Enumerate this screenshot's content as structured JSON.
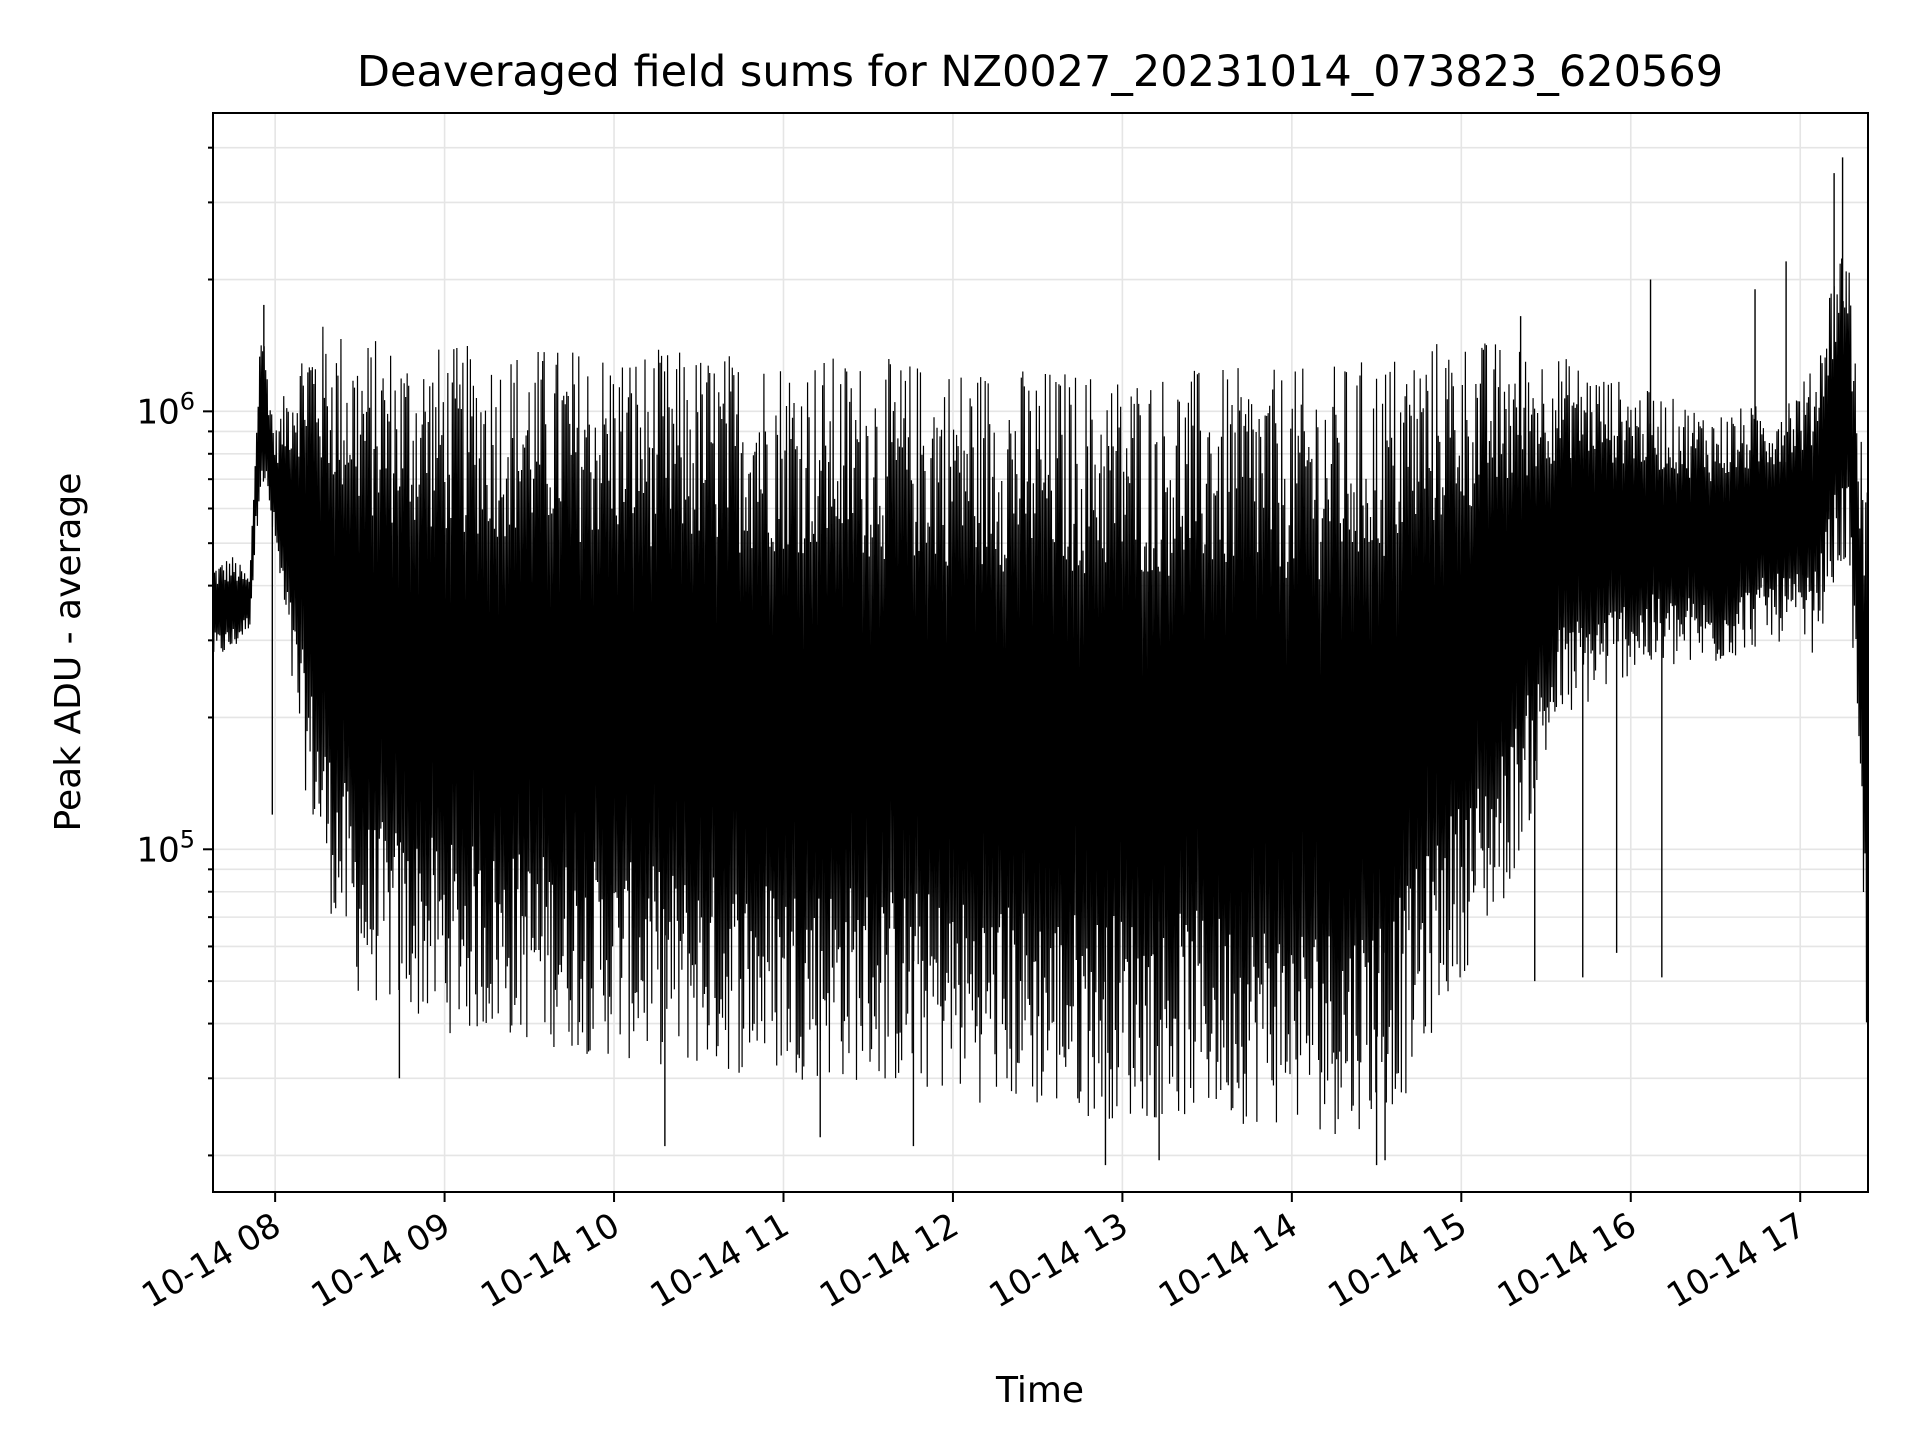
{
  "chart_data": {
    "type": "line",
    "title": "Deaveraged field sums for NZ0027_20231014_073823_620569",
    "xlabel": "Time",
    "ylabel": "Peak ADU - average",
    "yscale": "log",
    "grid": true,
    "legend": "none",
    "line_color": "#000000",
    "xlim": [
      "2023-10-14 07:38",
      "2023-10-14 17:24"
    ],
    "ylim": [
      16500,
      4800000
    ],
    "x_ticks": [
      {
        "value": "2023-10-14 08:00",
        "label": "10-14 08"
      },
      {
        "value": "2023-10-14 09:00",
        "label": "10-14 09"
      },
      {
        "value": "2023-10-14 10:00",
        "label": "10-14 10"
      },
      {
        "value": "2023-10-14 11:00",
        "label": "10-14 11"
      },
      {
        "value": "2023-10-14 12:00",
        "label": "10-14 12"
      },
      {
        "value": "2023-10-14 13:00",
        "label": "10-14 13"
      },
      {
        "value": "2023-10-14 14:00",
        "label": "10-14 14"
      },
      {
        "value": "2023-10-14 15:00",
        "label": "10-14 15"
      },
      {
        "value": "2023-10-14 16:00",
        "label": "10-14 16"
      },
      {
        "value": "2023-10-14 17:00",
        "label": "10-14 17"
      }
    ],
    "y_ticks": [
      {
        "value": 100000,
        "base": "10",
        "exp": "5"
      },
      {
        "value": 1000000,
        "base": "10",
        "exp": "6"
      }
    ],
    "envelope": {
      "columns": [
        "time",
        "lower",
        "upper"
      ],
      "note": "approximate per-interval min/max of the dense trace",
      "rows": [
        [
          "2023-10-14 07:38",
          270000,
          450000
        ],
        [
          "2023-10-14 07:45",
          280000,
          470000
        ],
        [
          "2023-10-14 07:51",
          320000,
          420000
        ],
        [
          "2023-10-14 07:55",
          700000,
          1700000
        ],
        [
          "2023-10-14 08:00",
          480000,
          900000
        ],
        [
          "2023-10-14 08:06",
          220000,
          1300000
        ],
        [
          "2023-10-14 08:12",
          120000,
          1600000
        ],
        [
          "2023-10-14 08:20",
          70000,
          1600000
        ],
        [
          "2023-10-14 08:30",
          45000,
          1500000
        ],
        [
          "2023-10-14 08:45",
          42000,
          1450000
        ],
        [
          "2023-10-14 09:00",
          38000,
          1420000
        ],
        [
          "2023-10-14 09:30",
          36000,
          1420000
        ],
        [
          "2023-10-14 10:00",
          33000,
          1420000
        ],
        [
          "2023-10-14 10:30",
          31000,
          1380000
        ],
        [
          "2023-10-14 11:00",
          30000,
          1380000
        ],
        [
          "2023-10-14 11:30",
          29000,
          1330000
        ],
        [
          "2023-10-14 12:00",
          27000,
          1300000
        ],
        [
          "2023-10-14 12:30",
          25000,
          1270000
        ],
        [
          "2023-10-14 13:00",
          24000,
          1250000
        ],
        [
          "2023-10-14 13:30",
          24000,
          1260000
        ],
        [
          "2023-10-14 14:00",
          23000,
          1250000
        ],
        [
          "2023-10-14 14:20",
          22000,
          1300000
        ],
        [
          "2023-10-14 14:40",
          27000,
          1400000
        ],
        [
          "2023-10-14 14:55",
          45000,
          1500000
        ],
        [
          "2023-10-14 15:15",
          75000,
          1450000
        ],
        [
          "2023-10-14 15:35",
          190000,
          1350000
        ],
        [
          "2023-10-14 16:00",
          250000,
          1150000
        ],
        [
          "2023-10-14 16:30",
          260000,
          1000000
        ],
        [
          "2023-10-14 16:50",
          300000,
          1050000
        ],
        [
          "2023-10-14 17:05",
          280000,
          1250000
        ],
        [
          "2023-10-14 17:12",
          400000,
          2200000
        ],
        [
          "2023-10-14 17:17",
          450000,
          2600000
        ],
        [
          "2023-10-14 17:21",
          120000,
          900000
        ],
        [
          "2023-10-14 17:24",
          30000,
          800000
        ]
      ]
    },
    "spikes": {
      "columns": [
        "time",
        "value"
      ],
      "note": "isolated excursions visible outside the envelope",
      "rows": [
        [
          "2023-10-14 07:56",
          1750000
        ],
        [
          "2023-10-14 07:59",
          120000
        ],
        [
          "2023-10-14 08:44",
          30000
        ],
        [
          "2023-10-14 10:18",
          21000
        ],
        [
          "2023-10-14 11:13",
          22000
        ],
        [
          "2023-10-14 11:46",
          21000
        ],
        [
          "2023-10-14 12:54",
          19000
        ],
        [
          "2023-10-14 13:13",
          19500
        ],
        [
          "2023-10-14 14:30",
          19000
        ],
        [
          "2023-10-14 14:33",
          19500
        ],
        [
          "2023-10-14 15:21",
          1650000
        ],
        [
          "2023-10-14 15:26",
          50000
        ],
        [
          "2023-10-14 15:43",
          51000
        ],
        [
          "2023-10-14 15:55",
          58000
        ],
        [
          "2023-10-14 16:07",
          2000000
        ],
        [
          "2023-10-14 16:11",
          51000
        ],
        [
          "2023-10-14 16:44",
          1900000
        ],
        [
          "2023-10-14 16:55",
          2200000
        ],
        [
          "2023-10-14 17:12",
          3500000
        ],
        [
          "2023-10-14 17:15",
          3800000
        ]
      ]
    }
  }
}
